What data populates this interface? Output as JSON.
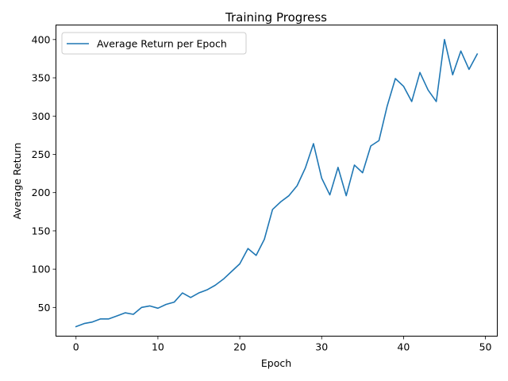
{
  "chart_data": {
    "type": "line",
    "title": "Training Progress",
    "xlabel": "Epoch",
    "ylabel": "Average Return",
    "xlim": [
      -2.45,
      51.45
    ],
    "ylim": [
      12.5,
      419.0
    ],
    "xticks": [
      0,
      10,
      20,
      30,
      40,
      50
    ],
    "yticks": [
      50,
      100,
      150,
      200,
      250,
      300,
      350,
      400
    ],
    "grid": false,
    "legend_position": "upper-left",
    "series": [
      {
        "name": "Average Return per Epoch",
        "color": "#1f77b4",
        "x": [
          0,
          1,
          2,
          3,
          4,
          5,
          6,
          7,
          8,
          9,
          10,
          11,
          12,
          13,
          14,
          15,
          16,
          17,
          18,
          19,
          20,
          21,
          22,
          23,
          24,
          25,
          26,
          27,
          28,
          29,
          30,
          31,
          32,
          33,
          34,
          35,
          36,
          37,
          38,
          39,
          40,
          41,
          42,
          43,
          44,
          45,
          46,
          47,
          48,
          49
        ],
        "y": [
          25,
          29,
          31,
          35,
          35,
          39,
          43,
          41,
          50,
          52,
          49,
          54,
          57,
          69,
          63,
          69,
          73,
          79,
          87,
          97,
          107,
          127,
          118,
          139,
          178,
          188,
          196,
          209,
          232,
          264,
          219,
          197,
          233,
          196,
          236,
          226,
          261,
          268,
          313,
          349,
          339,
          319,
          357,
          334,
          319,
          400,
          354,
          385,
          361,
          381
        ]
      }
    ]
  }
}
